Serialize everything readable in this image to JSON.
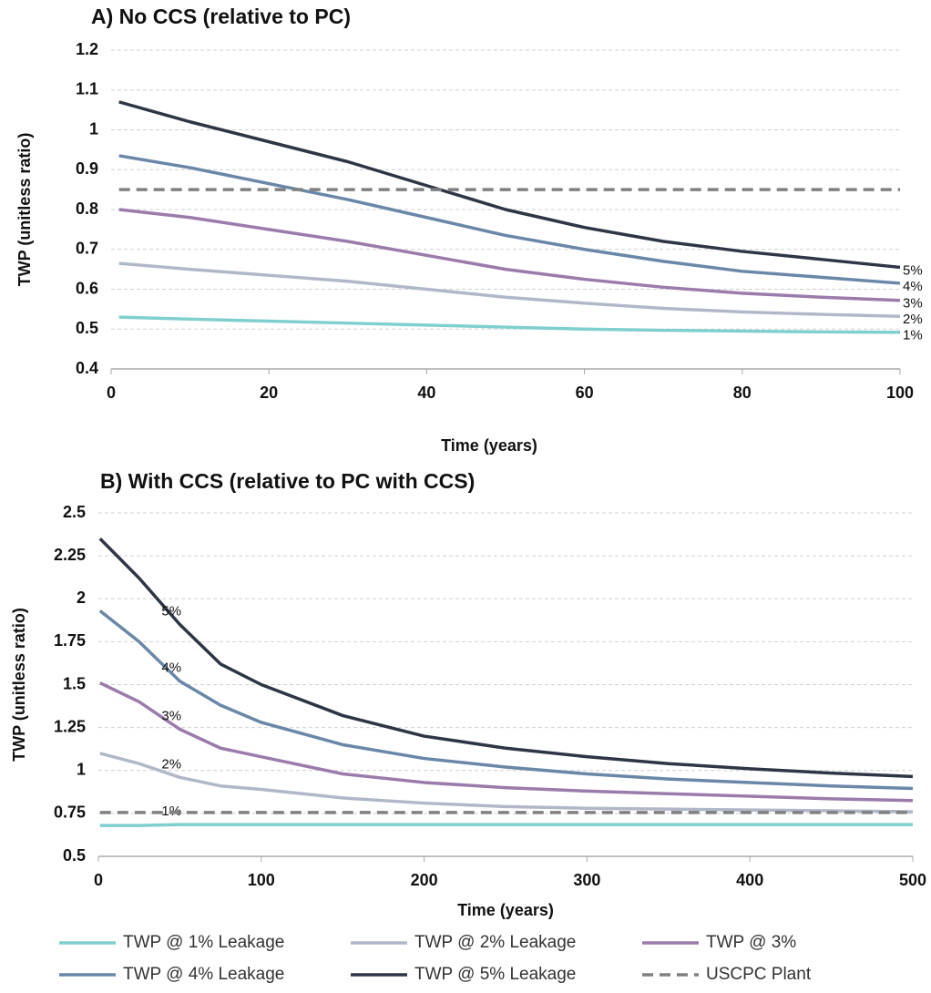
{
  "chart_data": [
    {
      "type": "line",
      "title": "A) No CCS (relative to PC)",
      "xlabel": "Time (years)",
      "ylabel": "TWP (unitless ratio)",
      "x": [
        1,
        10,
        20,
        30,
        40,
        50,
        60,
        70,
        80,
        90,
        100
      ],
      "xlim": [
        0,
        100
      ],
      "xticks": [
        0,
        20,
        40,
        60,
        80,
        100
      ],
      "ylim": [
        0.4,
        1.2
      ],
      "yticks": [
        0.4,
        0.5,
        0.6,
        0.7,
        0.8,
        0.9,
        1,
        1.1,
        1.2
      ],
      "grid": true,
      "label_position": "end",
      "series": [
        {
          "label": "1%",
          "color": "#7fcfcf",
          "values": [
            0.53,
            0.525,
            0.52,
            0.515,
            0.51,
            0.505,
            0.5,
            0.497,
            0.495,
            0.493,
            0.492
          ]
        },
        {
          "label": "2%",
          "color": "#b0b8c8",
          "values": [
            0.665,
            0.65,
            0.635,
            0.62,
            0.6,
            0.58,
            0.565,
            0.552,
            0.543,
            0.537,
            0.532
          ]
        },
        {
          "label": "3%",
          "color": "#9b7bab",
          "values": [
            0.8,
            0.78,
            0.75,
            0.72,
            0.685,
            0.65,
            0.625,
            0.605,
            0.59,
            0.58,
            0.572
          ]
        },
        {
          "label": "4%",
          "color": "#6a87a8",
          "values": [
            0.935,
            0.905,
            0.865,
            0.825,
            0.78,
            0.735,
            0.7,
            0.67,
            0.645,
            0.63,
            0.615
          ]
        },
        {
          "label": "5%",
          "color": "#2e3646",
          "values": [
            1.07,
            1.02,
            0.97,
            0.92,
            0.86,
            0.8,
            0.755,
            0.72,
            0.695,
            0.675,
            0.655
          ]
        },
        {
          "color": "#808080",
          "dash": true,
          "values": [
            0.85,
            0.85,
            0.85,
            0.85,
            0.85,
            0.85,
            0.85,
            0.85,
            0.85,
            0.85,
            0.85
          ]
        }
      ]
    },
    {
      "type": "line",
      "title": "B) With CCS (relative to PC with CCS)",
      "xlabel": "Time (years)",
      "ylabel": "TWP (unitless ratio)",
      "x": [
        1,
        25,
        50,
        75,
        100,
        150,
        200,
        250,
        300,
        350,
        400,
        450,
        500
      ],
      "xlim": [
        0,
        500
      ],
      "xticks": [
        0,
        100,
        200,
        300,
        400,
        500
      ],
      "ylim": [
        0.5,
        2.5
      ],
      "yticks": [
        0.5,
        0.75,
        1,
        1.25,
        1.5,
        1.75,
        2,
        2.25,
        2.5
      ],
      "grid": true,
      "label_position": "inline",
      "legend": "bottom",
      "series": [
        {
          "name": "TWP @ 1% Leakage",
          "label": "1%",
          "color": "#7fcfcf",
          "values": [
            0.68,
            0.68,
            0.685,
            0.685,
            0.685,
            0.685,
            0.685,
            0.685,
            0.685,
            0.685,
            0.685,
            0.685,
            0.685
          ]
        },
        {
          "name": "TWP @ 2% Leakage",
          "label": "2%",
          "color": "#b0b8c8",
          "values": [
            1.1,
            1.04,
            0.96,
            0.91,
            0.89,
            0.84,
            0.81,
            0.79,
            0.78,
            0.775,
            0.77,
            0.765,
            0.76
          ]
        },
        {
          "name": "TWP @ 3%",
          "label": "3%",
          "color": "#9b7bab",
          "values": [
            1.51,
            1.4,
            1.24,
            1.13,
            1.08,
            0.98,
            0.93,
            0.9,
            0.88,
            0.865,
            0.85,
            0.835,
            0.825
          ]
        },
        {
          "name": "TWP @ 4% Leakage",
          "label": "4%",
          "color": "#6a87a8",
          "values": [
            1.93,
            1.75,
            1.52,
            1.38,
            1.28,
            1.15,
            1.07,
            1.02,
            0.98,
            0.95,
            0.93,
            0.91,
            0.895
          ]
        },
        {
          "name": "TWP @ 5% Leakage",
          "label": "5%",
          "color": "#2e3646",
          "values": [
            2.35,
            2.12,
            1.85,
            1.62,
            1.5,
            1.32,
            1.2,
            1.13,
            1.08,
            1.04,
            1.01,
            0.985,
            0.965
          ]
        },
        {
          "name": "USCPC Plant",
          "color": "#808080",
          "dash": true,
          "values": [
            0.755,
            0.755,
            0.755,
            0.755,
            0.755,
            0.755,
            0.755,
            0.755,
            0.755,
            0.755,
            0.755,
            0.755,
            0.755
          ]
        }
      ]
    }
  ]
}
